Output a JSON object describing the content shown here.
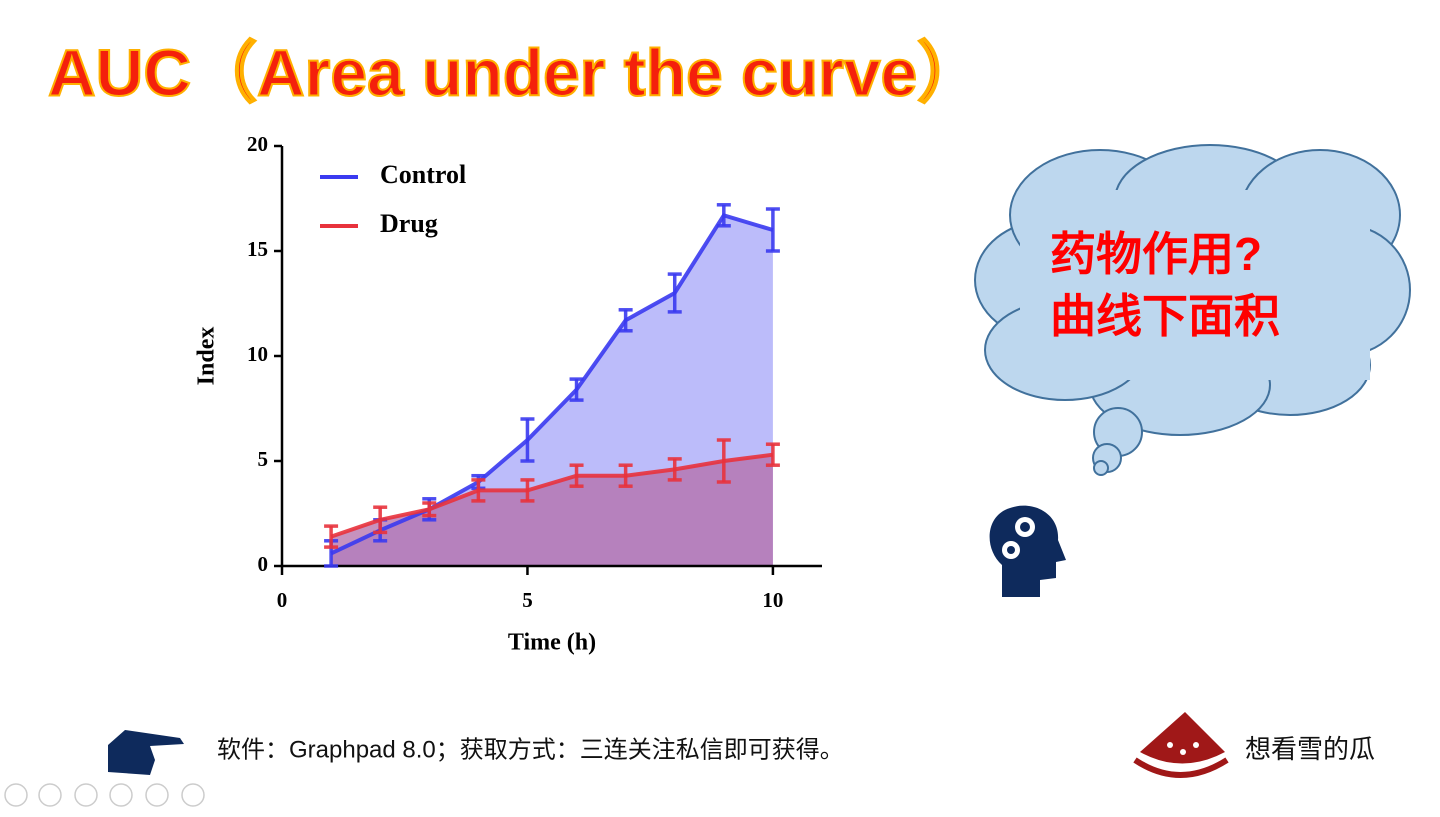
{
  "header": {
    "title": "AUC（Area under the curve）"
  },
  "chart_data": {
    "type": "line",
    "x_label": "Time (h)",
    "y_label": "Index",
    "x": [
      1,
      2,
      3,
      4,
      5,
      6,
      7,
      8,
      9,
      10
    ],
    "xlim": [
      0,
      11
    ],
    "xticks": [
      0,
      5,
      10
    ],
    "ylim": [
      0,
      20
    ],
    "yticks": [
      0,
      5,
      10,
      15,
      20
    ],
    "legend": "upper-left",
    "fill_area": true,
    "series": [
      {
        "name": "Control",
        "color": "#3a3af0",
        "fill": "#bcbcfa",
        "values": [
          0.6,
          1.7,
          2.7,
          4.0,
          6.0,
          8.4,
          11.7,
          13.0,
          16.7,
          16.0
        ],
        "errors": [
          0.6,
          0.5,
          0.5,
          0.3,
          1.0,
          0.5,
          0.5,
          0.9,
          0.5,
          1.0
        ]
      },
      {
        "name": "Drug",
        "color": "#e8323c",
        "fill": "#b46ea8",
        "values": [
          1.4,
          2.2,
          2.7,
          3.6,
          3.6,
          4.3,
          4.3,
          4.6,
          5.0,
          5.3
        ],
        "errors": [
          0.5,
          0.6,
          0.3,
          0.5,
          0.5,
          0.5,
          0.5,
          0.5,
          1.0,
          0.5
        ]
      }
    ]
  },
  "callout": {
    "lines": [
      "药物作用?",
      "曲线下面积"
    ]
  },
  "footer": {
    "note": "软件：Graphpad 8.0；获取方式：三连关注私信即可获得。",
    "brand": "想看雪的瓜"
  }
}
